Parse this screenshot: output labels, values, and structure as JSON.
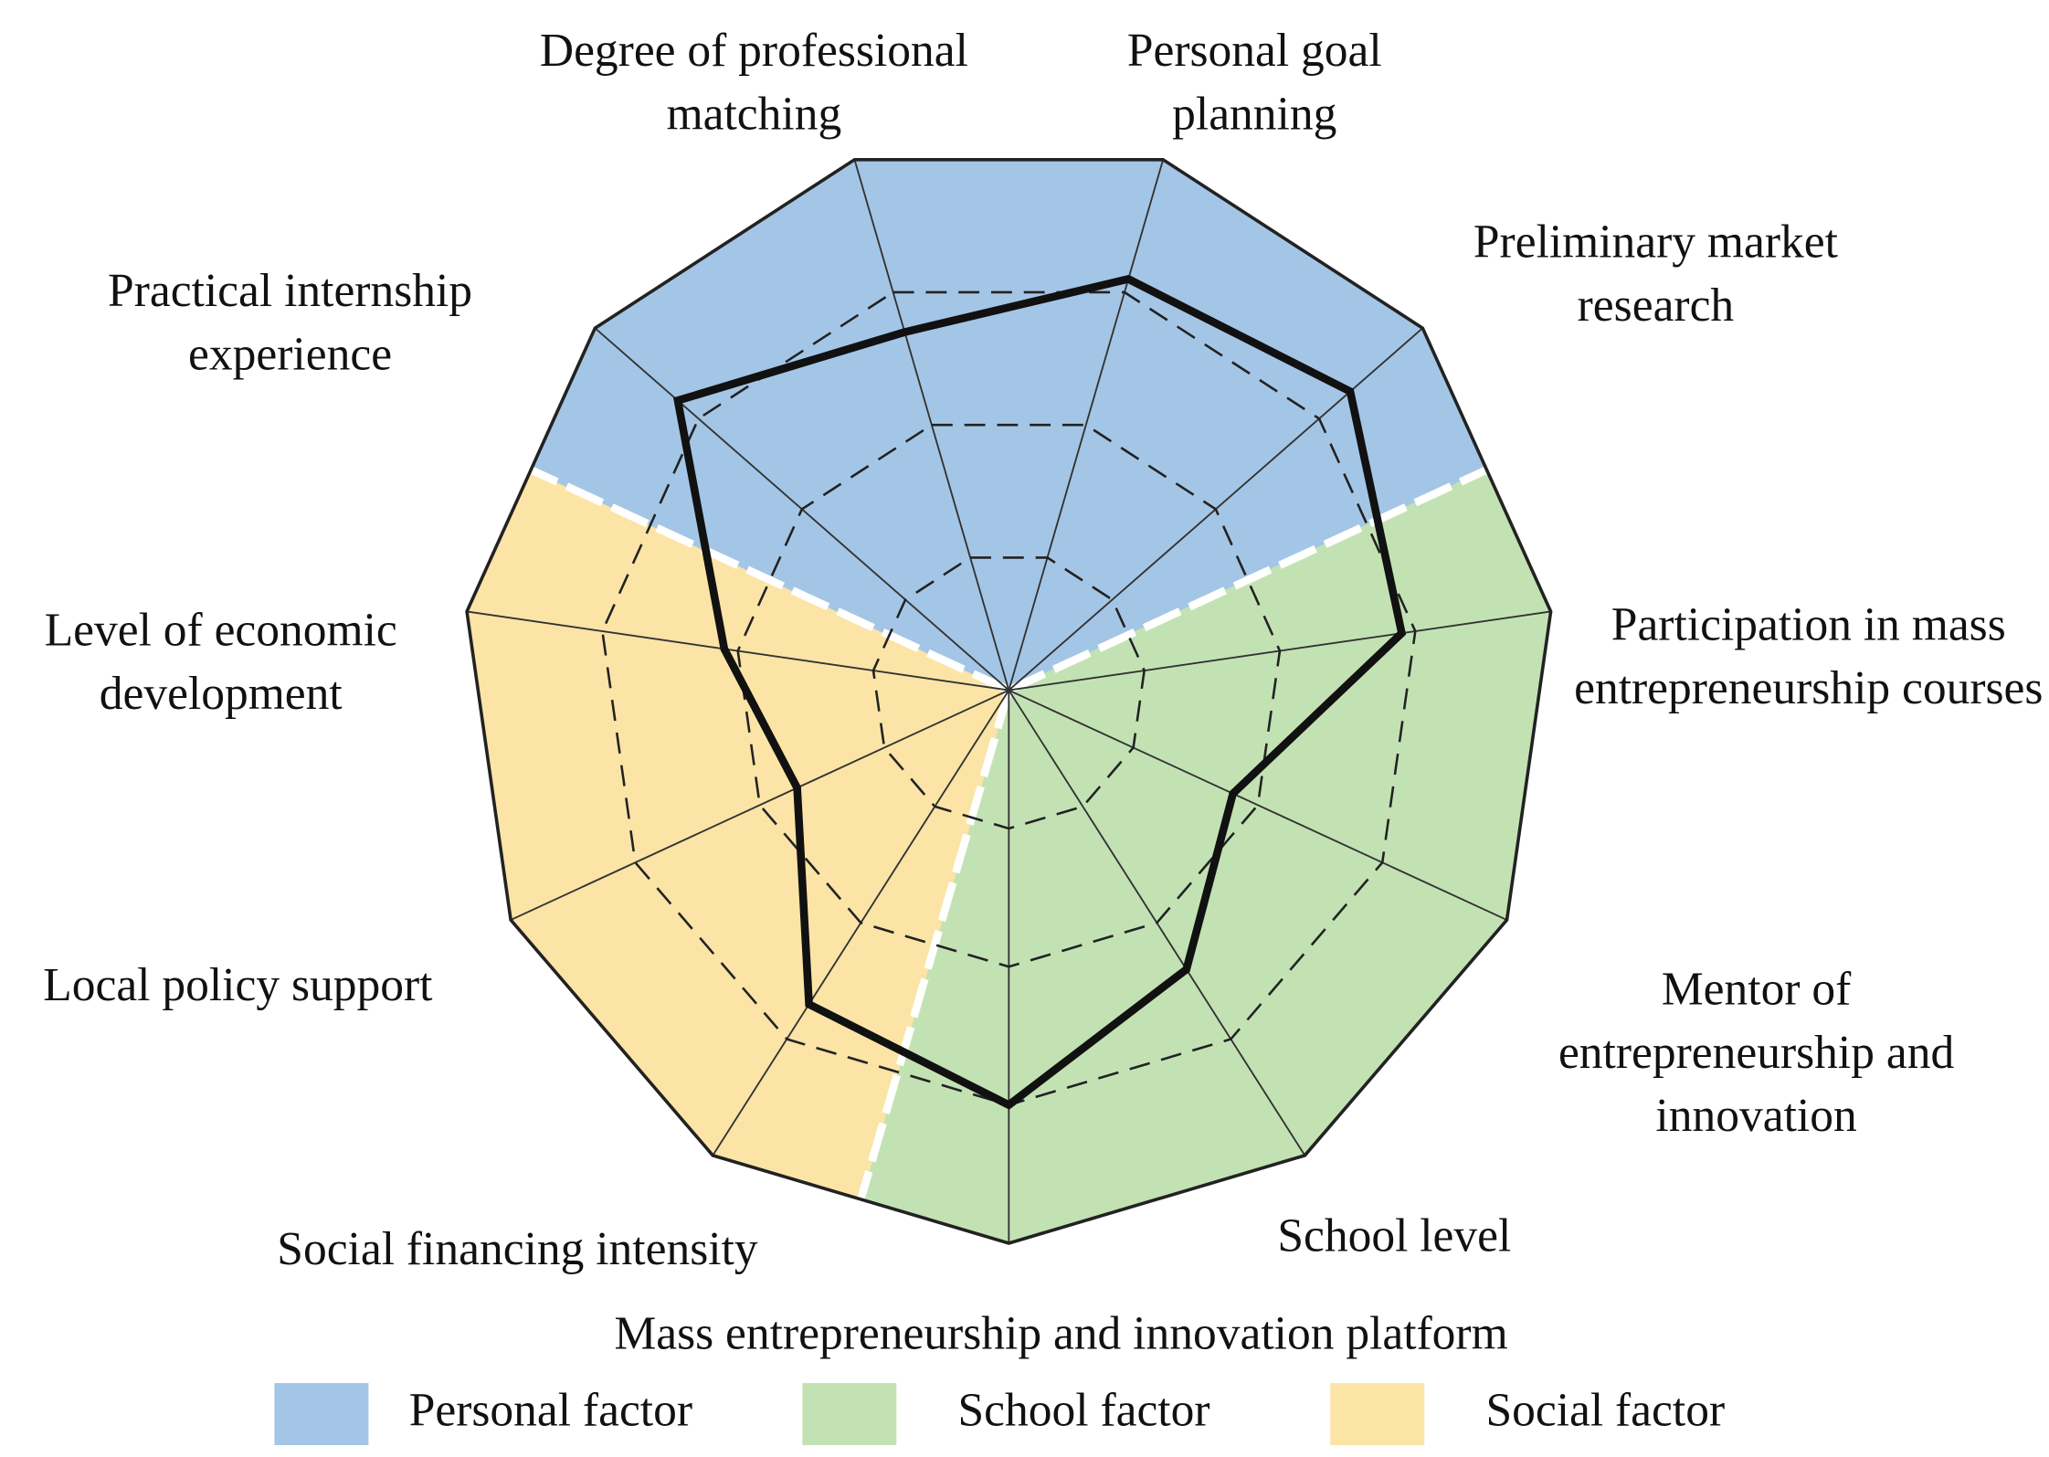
{
  "chart_data": {
    "type": "radar",
    "categories": [
      "Degree of professional matching",
      "Personal goal planning",
      "Preliminary market research",
      "Participation in mass entrepreneurship courses",
      "Mentor of entrepreneurship and innovation",
      "School level",
      "Mass entrepreneurship and innovation platform",
      "Social financing intensity",
      "Local policy support",
      "Level of economic development",
      "Practical internship experience"
    ],
    "series": [
      {
        "color": "#111111",
        "values": [
          2.7,
          3.1,
          3.3,
          2.9,
          1.8,
          2.4,
          3.0,
          2.7,
          1.7,
          2.1,
          3.2
        ]
      }
    ],
    "rlim": [
      0,
      4
    ],
    "rticks": [
      1,
      2,
      3,
      4
    ],
    "grid": true,
    "groups": [
      {
        "name": "Personal factor",
        "color": "#a4c6e6",
        "categories": [
          "Practical internship experience",
          "Degree of professional matching",
          "Personal goal planning",
          "Preliminary market research"
        ]
      },
      {
        "name": "School factor",
        "color": "#c3e2b4",
        "categories": [
          "Participation in mass entrepreneurship courses",
          "Mentor of entrepreneurship and innovation",
          "School level",
          "Mass entrepreneurship and innovation platform"
        ]
      },
      {
        "name": "Social factor",
        "color": "#fbe4a6",
        "categories": [
          "Social financing intensity",
          "Local policy support",
          "Level of economic development"
        ]
      }
    ]
  }
}
